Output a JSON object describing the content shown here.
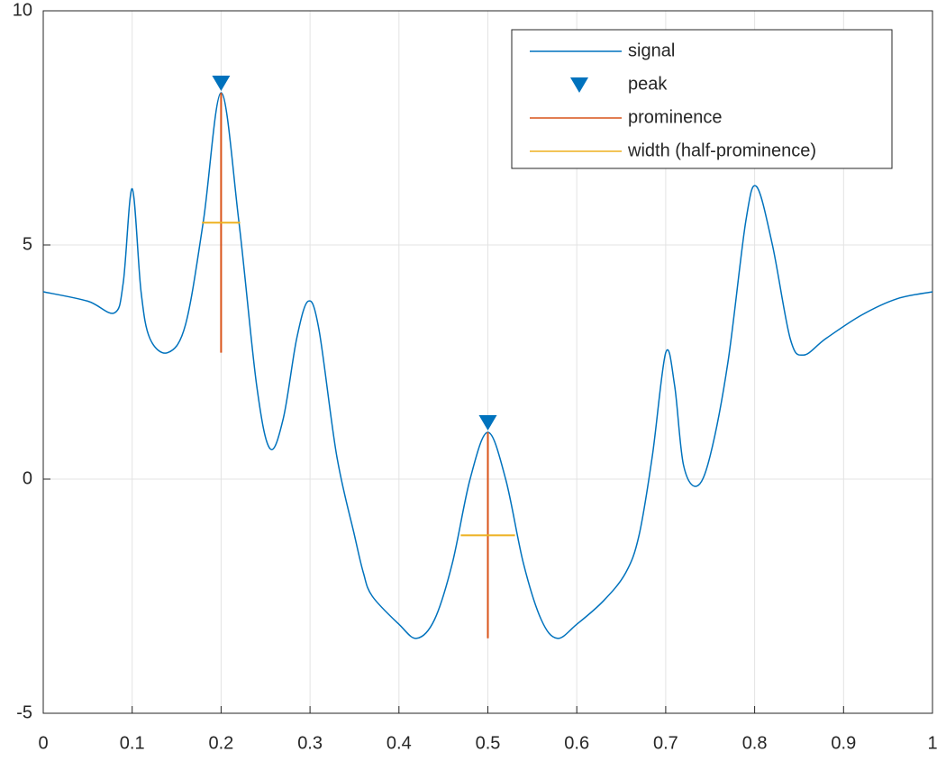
{
  "chart_data": {
    "type": "line",
    "x": [
      0,
      0.05,
      0.08,
      0.09,
      0.1,
      0.11,
      0.12,
      0.14,
      0.16,
      0.18,
      0.2,
      0.22,
      0.24,
      0.255,
      0.27,
      0.285,
      0.298,
      0.31,
      0.33,
      0.35,
      0.36,
      0.37,
      0.4,
      0.42,
      0.44,
      0.46,
      0.48,
      0.5,
      0.52,
      0.54,
      0.56,
      0.578,
      0.6,
      0.63,
      0.655,
      0.67,
      0.685,
      0.7,
      0.71,
      0.72,
      0.735,
      0.75,
      0.77,
      0.79,
      0.802,
      0.82,
      0.84,
      0.855,
      0.88,
      0.92,
      0.96,
      1.0
    ],
    "series": [
      {
        "name": "signal",
        "color": "#0072BD",
        "values": [
          4.0,
          3.8,
          3.55,
          4.2,
          6.2,
          4.0,
          3.0,
          2.7,
          3.3,
          5.5,
          8.25,
          5.5,
          2.0,
          0.65,
          1.3,
          3.0,
          3.8,
          3.2,
          0.5,
          -1.2,
          -2.0,
          -2.5,
          -3.1,
          -3.4,
          -3.0,
          -1.8,
          0.0,
          1.0,
          0.0,
          -1.8,
          -3.0,
          -3.4,
          -3.1,
          -2.6,
          -2.0,
          -1.2,
          0.5,
          2.7,
          2.0,
          0.3,
          -0.15,
          0.5,
          2.5,
          5.5,
          6.25,
          5.0,
          3.0,
          2.65,
          3.0,
          3.5,
          3.85,
          4.0
        ]
      }
    ],
    "peaks": {
      "name": "peak",
      "color": "#0072BD",
      "x": [
        0.2,
        0.5
      ],
      "values": [
        8.25,
        1.0
      ]
    },
    "prominence": {
      "name": "prominence",
      "color": "#D95319",
      "values": [
        5.55,
        4.4
      ]
    },
    "width": {
      "name": "width (half-prominence)",
      "color": "#EDB120",
      "values": [
        0.043,
        0.061
      ]
    },
    "xlim": [
      0,
      1
    ],
    "xticks": [
      0,
      0.1,
      0.2,
      0.3,
      0.4,
      0.5,
      0.6,
      0.7,
      0.8,
      0.9,
      1
    ],
    "ylim": [
      -5,
      10
    ],
    "yticks": [
      -5,
      0,
      5,
      10
    ],
    "grid": true
  }
}
